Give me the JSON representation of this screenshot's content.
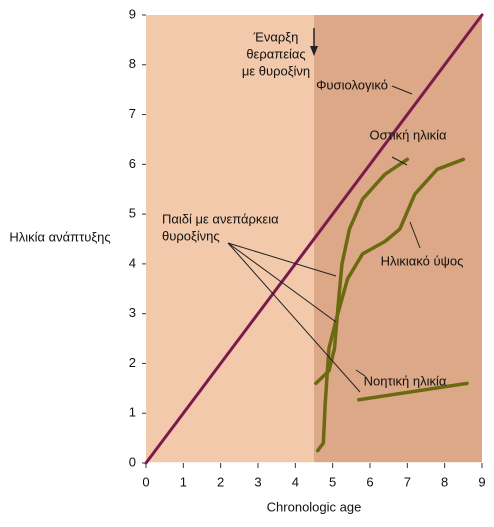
{
  "chart_data": {
    "type": "line",
    "ylabel": "Ηλικία ανάπτυξης",
    "xlabel": "Chronologic age",
    "xlim": [
      0,
      9
    ],
    "ylim": [
      0,
      9
    ],
    "xticks": [
      0,
      1,
      2,
      3,
      4,
      5,
      6,
      7,
      8,
      9
    ],
    "yticks": [
      0,
      1,
      2,
      3,
      4,
      5,
      6,
      7,
      8,
      9
    ],
    "treatment_start": 4.5,
    "background_colors": [
      "#f2c9aa",
      "#dca887"
    ],
    "series": [
      {
        "name": "Φυσιολογικό",
        "color": "#7b1a4c",
        "x": [
          0,
          9
        ],
        "values": [
          0,
          9
        ]
      },
      {
        "name": "Οστική ηλικία",
        "color": "#6b6a10",
        "x": [
          4.55,
          4.9,
          5.05,
          5.15,
          5.25,
          5.45,
          5.8,
          6.4,
          7.0
        ],
        "values": [
          1.6,
          1.85,
          2.3,
          3.2,
          4.0,
          4.7,
          5.3,
          5.8,
          6.1
        ]
      },
      {
        "name": "Ηλικιακό ύψος",
        "color": "#6b6a10",
        "x": [
          4.6,
          4.75,
          4.8,
          4.9,
          5.1,
          5.4,
          5.8,
          6.4,
          6.8,
          7.2,
          7.8,
          8.5
        ],
        "values": [
          0.25,
          0.4,
          1.2,
          2.3,
          2.9,
          3.7,
          4.2,
          4.45,
          4.7,
          5.4,
          5.9,
          6.1
        ]
      },
      {
        "name": "Νοητική ηλικία",
        "color": "#6b6a10",
        "x": [
          5.7,
          8.6
        ],
        "values": [
          1.27,
          1.6
        ]
      }
    ],
    "annotations": {
      "treatment": [
        "Έναρξη",
        "θεραπείας",
        "με θυροξίνη"
      ],
      "child": [
        "Παιδί με ανεπάρκεια",
        "θυροξίνης"
      ]
    }
  }
}
